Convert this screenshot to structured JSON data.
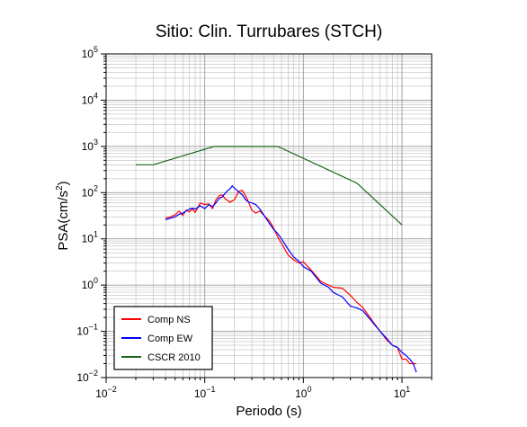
{
  "chart_data": {
    "type": "line",
    "title": "Sitio: Clin. Turrubares (STCH)",
    "xlabel": "Periodo (s)",
    "ylabel_main": "PSA(cm/s",
    "ylabel_sup": "2",
    "ylabel_tail": ")",
    "x_scale": "log",
    "y_scale": "log",
    "xlim": [
      0.01,
      20
    ],
    "ylim": [
      0.01,
      100000
    ],
    "grid": true,
    "legend_position": "bottom-left",
    "x_ticks": [
      {
        "value": 0.01,
        "base": "10",
        "exp": "−2"
      },
      {
        "value": 0.1,
        "base": "10",
        "exp": "−1"
      },
      {
        "value": 1,
        "base": "10",
        "exp": "0"
      },
      {
        "value": 10,
        "base": "10",
        "exp": "1"
      }
    ],
    "y_ticks": [
      {
        "value": 0.01,
        "base": "10",
        "exp": "−2"
      },
      {
        "value": 0.1,
        "base": "10",
        "exp": "−1"
      },
      {
        "value": 1,
        "base": "10",
        "exp": "0"
      },
      {
        "value": 10,
        "base": "10",
        "exp": "1"
      },
      {
        "value": 100,
        "base": "10",
        "exp": "2"
      },
      {
        "value": 1000,
        "base": "10",
        "exp": "3"
      },
      {
        "value": 10000,
        "base": "10",
        "exp": "4"
      },
      {
        "value": 100000,
        "base": "10",
        "exp": "5"
      }
    ],
    "series": [
      {
        "name": "Comp NS",
        "color": "#ff0000",
        "points": [
          [
            0.04,
            28
          ],
          [
            0.045,
            30
          ],
          [
            0.05,
            33
          ],
          [
            0.055,
            40
          ],
          [
            0.06,
            32
          ],
          [
            0.065,
            42
          ],
          [
            0.07,
            38
          ],
          [
            0.075,
            45
          ],
          [
            0.08,
            37
          ],
          [
            0.09,
            60
          ],
          [
            0.1,
            55
          ],
          [
            0.11,
            57
          ],
          [
            0.12,
            45
          ],
          [
            0.13,
            70
          ],
          [
            0.14,
            85
          ],
          [
            0.15,
            90
          ],
          [
            0.16,
            75
          ],
          [
            0.18,
            62
          ],
          [
            0.2,
            70
          ],
          [
            0.22,
            105
          ],
          [
            0.24,
            112
          ],
          [
            0.26,
            85
          ],
          [
            0.28,
            60
          ],
          [
            0.3,
            42
          ],
          [
            0.33,
            36
          ],
          [
            0.36,
            40
          ],
          [
            0.4,
            32
          ],
          [
            0.45,
            25
          ],
          [
            0.5,
            17
          ],
          [
            0.55,
            11
          ],
          [
            0.6,
            8
          ],
          [
            0.7,
            4.5
          ],
          [
            0.8,
            3.5
          ],
          [
            0.9,
            3
          ],
          [
            1.0,
            3.2
          ],
          [
            1.2,
            2.1
          ],
          [
            1.5,
            1.2
          ],
          [
            1.8,
            1.0
          ],
          [
            2.0,
            0.9
          ],
          [
            2.5,
            0.85
          ],
          [
            3.0,
            0.6
          ],
          [
            3.5,
            0.42
          ],
          [
            4.0,
            0.33
          ],
          [
            5.0,
            0.17
          ],
          [
            6.0,
            0.1
          ],
          [
            7.0,
            0.065
          ],
          [
            8.0,
            0.05
          ],
          [
            9.0,
            0.045
          ],
          [
            10.0,
            0.025
          ],
          [
            11.0,
            0.025
          ],
          [
            12.0,
            0.02
          ],
          [
            13.0,
            0.02
          ],
          [
            14.0,
            0.02
          ]
        ]
      },
      {
        "name": "Comp EW",
        "color": "#0000ff",
        "points": [
          [
            0.04,
            26
          ],
          [
            0.05,
            30
          ],
          [
            0.055,
            34
          ],
          [
            0.06,
            36
          ],
          [
            0.065,
            40
          ],
          [
            0.07,
            44
          ],
          [
            0.075,
            46
          ],
          [
            0.08,
            44
          ],
          [
            0.09,
            52
          ],
          [
            0.1,
            45
          ],
          [
            0.11,
            55
          ],
          [
            0.12,
            50
          ],
          [
            0.13,
            60
          ],
          [
            0.14,
            75
          ],
          [
            0.15,
            80
          ],
          [
            0.16,
            95
          ],
          [
            0.17,
            110
          ],
          [
            0.18,
            120
          ],
          [
            0.19,
            140
          ],
          [
            0.2,
            125
          ],
          [
            0.22,
            105
          ],
          [
            0.24,
            90
          ],
          [
            0.26,
            70
          ],
          [
            0.28,
            62
          ],
          [
            0.3,
            60
          ],
          [
            0.33,
            55
          ],
          [
            0.36,
            45
          ],
          [
            0.4,
            32
          ],
          [
            0.45,
            22
          ],
          [
            0.5,
            16
          ],
          [
            0.55,
            13
          ],
          [
            0.6,
            10
          ],
          [
            0.7,
            6
          ],
          [
            0.8,
            4
          ],
          [
            0.9,
            3.3
          ],
          [
            1.0,
            2.5
          ],
          [
            1.2,
            2.0
          ],
          [
            1.5,
            1.1
          ],
          [
            1.8,
            0.9
          ],
          [
            2.0,
            0.7
          ],
          [
            2.5,
            0.55
          ],
          [
            3.0,
            0.35
          ],
          [
            3.5,
            0.32
          ],
          [
            4.0,
            0.28
          ],
          [
            5.0,
            0.16
          ],
          [
            6.0,
            0.1
          ],
          [
            7.0,
            0.07
          ],
          [
            8.0,
            0.05
          ],
          [
            9.0,
            0.045
          ],
          [
            10.0,
            0.035
          ],
          [
            11.0,
            0.03
          ],
          [
            12.0,
            0.025
          ],
          [
            13.0,
            0.02
          ],
          [
            14.0,
            0.013
          ]
        ]
      },
      {
        "name": "CSCR 2010",
        "color": "#1a661a",
        "points": [
          [
            0.02,
            400
          ],
          [
            0.03,
            400
          ],
          [
            0.125,
            1000
          ],
          [
            0.55,
            1000
          ],
          [
            3.5,
            160
          ],
          [
            10,
            20
          ]
        ]
      }
    ]
  }
}
